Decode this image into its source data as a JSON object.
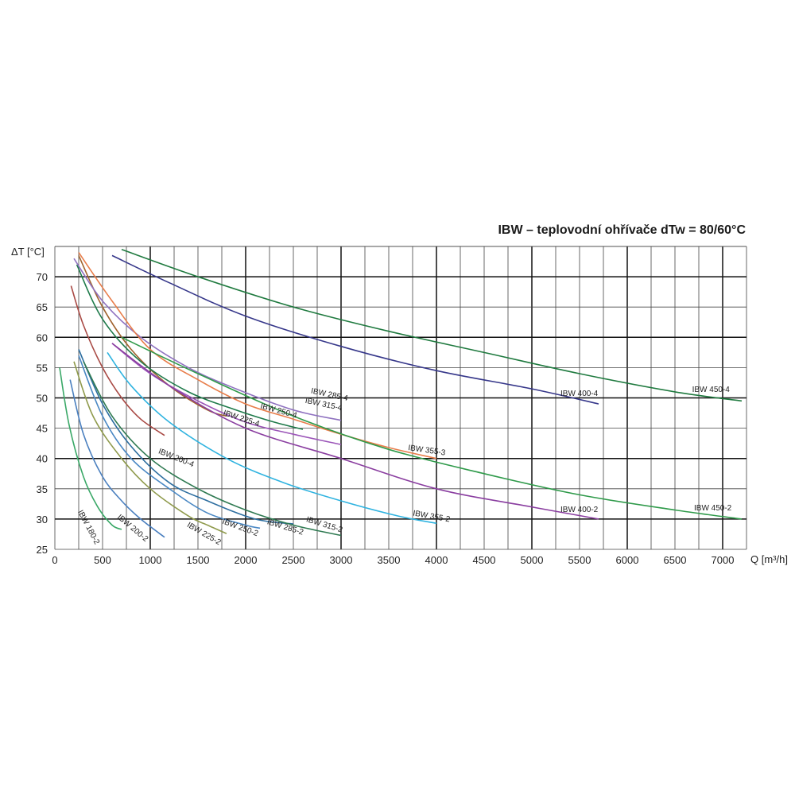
{
  "chart_data": {
    "type": "line",
    "title": "IBW – teplovodní ohřívače dTw = 80/60°C",
    "xlabel": "Q [m³/h]",
    "ylabel": "ΔT [°C]",
    "xlim": [
      0,
      7250
    ],
    "ylim": [
      25,
      75
    ],
    "xticks": [
      0,
      500,
      1000,
      1500,
      2000,
      2500,
      3000,
      3500,
      4000,
      4500,
      5000,
      5500,
      6000,
      6500,
      7000
    ],
    "yticks": [
      25,
      30,
      35,
      40,
      45,
      50,
      55,
      60,
      65,
      70
    ],
    "minor_grid_step": 250,
    "major_grid_step": 1000,
    "grid": true,
    "series": [
      {
        "name": "IBW 180-2",
        "color": "#3aa867",
        "x": [
          50,
          150,
          300,
          450,
          600,
          700
        ],
        "y": [
          55,
          45.5,
          37,
          32,
          29,
          28.3
        ]
      },
      {
        "name": "IBW 200-2",
        "color": "#4a7fbf",
        "x": [
          160,
          300,
          500,
          700,
          900,
          1150
        ],
        "y": [
          53,
          44,
          37,
          33,
          30,
          27
        ]
      },
      {
        "name": "IBW 225-2",
        "color": "#8f9a4c",
        "x": [
          200,
          400,
          700,
          1000,
          1400,
          1600,
          1800
        ],
        "y": [
          56,
          47,
          40,
          35,
          30.5,
          29,
          27.6
        ]
      },
      {
        "name": "IBW 250-2",
        "color": "#4a88c4",
        "x": [
          250,
          500,
          800,
          1200,
          1600,
          2000,
          2150
        ],
        "y": [
          57,
          47,
          40,
          35,
          31,
          29,
          28.5
        ]
      },
      {
        "name": "IBW 285-2",
        "color": "#2d6ea0",
        "x": [
          250,
          500,
          800,
          1200,
          1600,
          2100,
          2500
        ],
        "y": [
          58,
          49,
          42,
          36,
          33,
          30,
          29.2
        ]
      },
      {
        "name": "IBW 315-2",
        "color": "#2f7a52",
        "x": [
          300,
          600,
          1000,
          1500,
          2000,
          2500,
          3000
        ],
        "y": [
          56,
          47,
          40,
          35,
          31.5,
          29,
          27.3
        ]
      },
      {
        "name": "IBW 355-2",
        "color": "#2fb3e0",
        "x": [
          550,
          800,
          1200,
          1800,
          2400,
          3000,
          3600,
          4000
        ],
        "y": [
          57.5,
          52,
          46,
          40,
          36,
          33,
          30.5,
          29.3
        ]
      },
      {
        "name": "IBW 200-4",
        "color": "#a94a45",
        "x": [
          170,
          300,
          500,
          700,
          900,
          1150
        ],
        "y": [
          68.5,
          62,
          55,
          50,
          46.5,
          43.8
        ]
      },
      {
        "name": "IBW 225-4",
        "color": "#a0632e",
        "x": [
          250,
          500,
          800,
          1200,
          1600,
          1800
        ],
        "y": [
          73.5,
          65,
          58,
          52,
          48,
          47
        ]
      },
      {
        "name": "IBW 250-4",
        "color": "#1e7a4a",
        "x": [
          230,
          500,
          900,
          1400,
          1900,
          2300,
          2600
        ],
        "y": [
          72,
          63,
          56,
          51,
          48,
          46,
          44.8
        ]
      },
      {
        "name": "IBW 285-4",
        "color": "#8f72c0",
        "x": [
          200,
          500,
          900,
          1400,
          1900,
          2500,
          3000
        ],
        "y": [
          73,
          66,
          60,
          55,
          51.5,
          48,
          46.3
        ]
      },
      {
        "name": "IBW 315-4",
        "color": "#9b55b8",
        "x": [
          600,
          1000,
          1500,
          2000,
          2500,
          3000
        ],
        "y": [
          59,
          54,
          49.5,
          46,
          44,
          42.3
        ]
      },
      {
        "name": "IBW 355-3",
        "color": "#e87d4a",
        "x": [
          250,
          600,
          1000,
          1500,
          2000,
          2500,
          3000,
          3500,
          4000
        ],
        "y": [
          74,
          66,
          58,
          53,
          49,
          46.5,
          44,
          41.8,
          40
        ]
      },
      {
        "name": "IBW 400-4",
        "color": "#36378a",
        "x": [
          600,
          1200,
          2000,
          3000,
          4000,
          5000,
          5700
        ],
        "y": [
          73.5,
          69,
          63.5,
          58.5,
          54.5,
          51.5,
          49
        ]
      },
      {
        "name": "IBW 450-4",
        "color": "#1f7a3f",
        "x": [
          700,
          1500,
          2500,
          3500,
          4500,
          5500,
          6500,
          7200
        ],
        "y": [
          74.5,
          70,
          65,
          61,
          57.5,
          54,
          51,
          49.5
        ]
      },
      {
        "name": "IBW 400-2",
        "color": "#8a3ea0",
        "x": [
          600,
          1200,
          2000,
          3000,
          4000,
          5000,
          5700
        ],
        "y": [
          59,
          52,
          45,
          40,
          35,
          32,
          30
        ]
      },
      {
        "name": "IBW 450-2",
        "color": "#2f9a4a",
        "x": [
          700,
          1500,
          2500,
          3500,
          4500,
          5500,
          6500,
          7200
        ],
        "y": [
          60,
          54,
          47,
          41.5,
          37.5,
          34,
          31.5,
          30
        ]
      }
    ],
    "labels": [
      {
        "text": "IBW 180-2",
        "x": 240,
        "y": 31.2,
        "rot": 62
      },
      {
        "text": "IBW 200-2",
        "x": 650,
        "y": 30.2,
        "rot": 40
      },
      {
        "text": "IBW 225-2",
        "x": 1380,
        "y": 28.8,
        "rot": 30
      },
      {
        "text": "IBW 250-2",
        "x": 1750,
        "y": 29.3,
        "rot": 20
      },
      {
        "text": "IBW 285-2",
        "x": 2220,
        "y": 29.2,
        "rot": 17
      },
      {
        "text": "IBW 315-2",
        "x": 2630,
        "y": 29.6,
        "rot": 17
      },
      {
        "text": "IBW 355-2",
        "x": 3750,
        "y": 30.6,
        "rot": 10
      },
      {
        "text": "IBW 200-4",
        "x": 1080,
        "y": 40.9,
        "rot": 22
      },
      {
        "text": "IBW 225-4",
        "x": 1760,
        "y": 47.2,
        "rot": 18
      },
      {
        "text": "IBW 250-4",
        "x": 2150,
        "y": 48.3,
        "rot": 15
      },
      {
        "text": "IBW 285-4",
        "x": 2680,
        "y": 50.8,
        "rot": 12
      },
      {
        "text": "IBW 315-4",
        "x": 2620,
        "y": 49.2,
        "rot": 12
      },
      {
        "text": "IBW 355-3",
        "x": 3700,
        "y": 41.4,
        "rot": 8
      },
      {
        "text": "IBW 400-4",
        "x": 5300,
        "y": 50.3,
        "rot": 0
      },
      {
        "text": "IBW 450-4",
        "x": 6680,
        "y": 51.0,
        "rot": 0
      },
      {
        "text": "IBW 400-2",
        "x": 5300,
        "y": 31.2,
        "rot": 0
      },
      {
        "text": "IBW 450-2",
        "x": 6700,
        "y": 31.4,
        "rot": 0
      }
    ]
  }
}
